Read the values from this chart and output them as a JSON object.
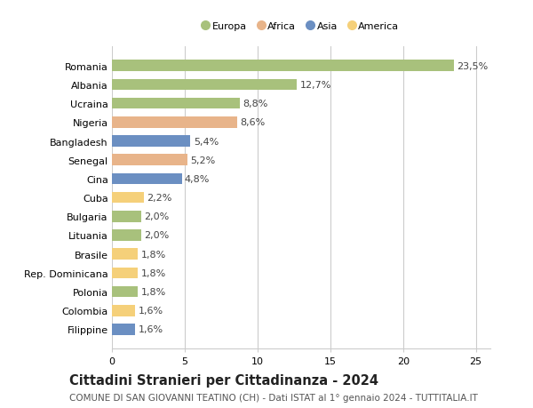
{
  "categories": [
    "Romania",
    "Albania",
    "Ucraina",
    "Nigeria",
    "Bangladesh",
    "Senegal",
    "Cina",
    "Cuba",
    "Bulgaria",
    "Lituania",
    "Brasile",
    "Rep. Dominicana",
    "Polonia",
    "Colombia",
    "Filippine"
  ],
  "values": [
    23.5,
    12.7,
    8.8,
    8.6,
    5.4,
    5.2,
    4.8,
    2.2,
    2.0,
    2.0,
    1.8,
    1.8,
    1.8,
    1.6,
    1.6
  ],
  "labels": [
    "23,5%",
    "12,7%",
    "8,8%",
    "8,6%",
    "5,4%",
    "5,2%",
    "4,8%",
    "2,2%",
    "2,0%",
    "2,0%",
    "1,8%",
    "1,8%",
    "1,8%",
    "1,6%",
    "1,6%"
  ],
  "colors": [
    "#a8c17c",
    "#a8c17c",
    "#a8c17c",
    "#e8b48a",
    "#6b8fc2",
    "#e8b48a",
    "#6b8fc2",
    "#f5d07a",
    "#a8c17c",
    "#a8c17c",
    "#f5d07a",
    "#f5d07a",
    "#a8c17c",
    "#f5d07a",
    "#6b8fc2"
  ],
  "continents": [
    "Europa",
    "Europa",
    "Europa",
    "Africa",
    "Asia",
    "Africa",
    "Asia",
    "America",
    "Europa",
    "Europa",
    "America",
    "America",
    "Europa",
    "America",
    "Asia"
  ],
  "legend_labels": [
    "Europa",
    "Africa",
    "Asia",
    "America"
  ],
  "legend_colors": [
    "#a8c17c",
    "#e8b48a",
    "#6b8fc2",
    "#f5d07a"
  ],
  "title": "Cittadini Stranieri per Cittadinanza - 2024",
  "subtitle": "COMUNE DI SAN GIOVANNI TEATINO (CH) - Dati ISTAT al 1° gennaio 2024 - TUTTITALIA.IT",
  "xlim": [
    0,
    26
  ],
  "xticks": [
    0,
    5,
    10,
    15,
    20,
    25
  ],
  "bg_color": "#ffffff",
  "grid_color": "#cccccc",
  "bar_height": 0.6,
  "label_fontsize": 8,
  "tick_fontsize": 8,
  "title_fontsize": 10.5,
  "subtitle_fontsize": 7.5
}
